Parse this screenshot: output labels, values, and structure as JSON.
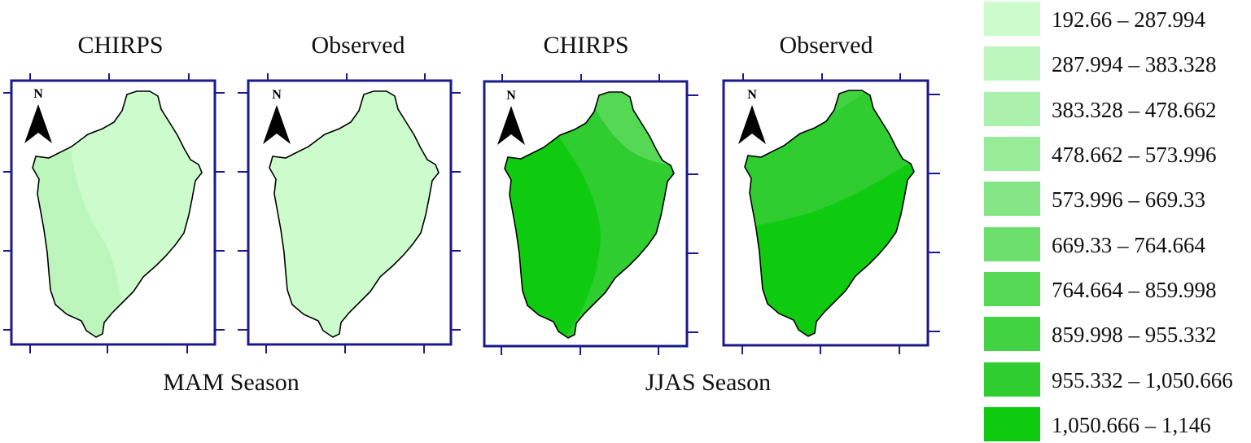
{
  "maps": [
    {
      "title": "CHIRPS",
      "season": "MAM",
      "north_label": "N"
    },
    {
      "title": "Observed",
      "season": "MAM",
      "north_label": "N"
    },
    {
      "title": "CHIRPS",
      "season": "JJAS",
      "north_label": "N"
    },
    {
      "title": "Observed",
      "season": "JJAS",
      "north_label": "N"
    }
  ],
  "seasons": {
    "mam": "MAM Season",
    "jjas": "JJAS Season"
  },
  "legend": [
    {
      "label": "192.66 – 287.994",
      "color": "#ccfccc"
    },
    {
      "label": "287.994 – 383.328",
      "color": "#bcf6bc"
    },
    {
      "label": "383.328 – 478.662",
      "color": "#abf1ab"
    },
    {
      "label": "478.662 – 573.996",
      "color": "#98ec98"
    },
    {
      "label": "573.996 – 669.33",
      "color": "#83e583"
    },
    {
      "label": "669.33 – 764.664",
      "color": "#6ddf6d"
    },
    {
      "label": "764.664 – 859.998",
      "color": "#55d955"
    },
    {
      "label": "859.998 – 955.332",
      "color": "#42d342"
    },
    {
      "label": "955.332 – 1,050.666",
      "color": "#2fcd2f"
    },
    {
      "label": "1,050.666 – 1,146",
      "color": "#0fcb0f"
    }
  ],
  "colors": {
    "frame": "#1a1a8c",
    "outline": "#000000"
  }
}
